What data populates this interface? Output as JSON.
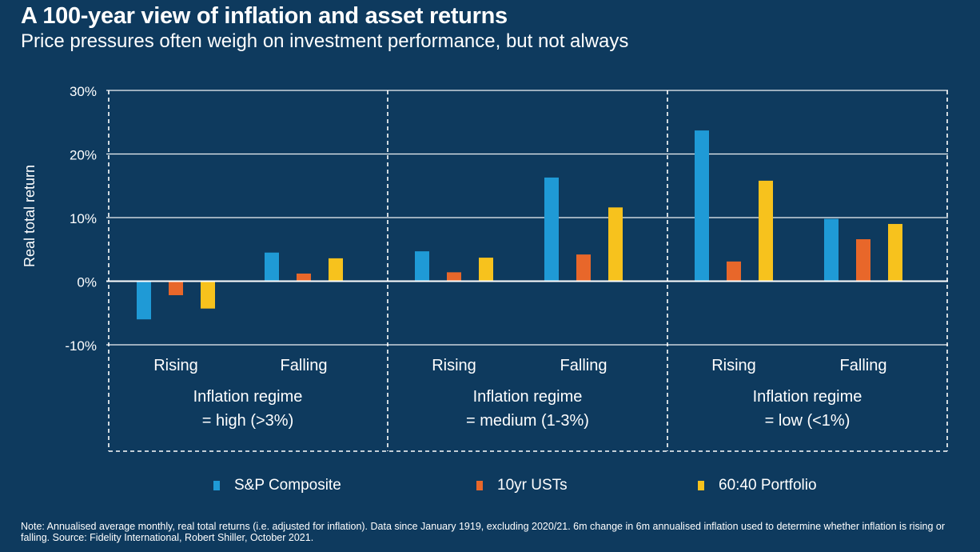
{
  "header": {
    "title": "A 100-year view of inflation and asset returns",
    "subtitle": "Price pressures often weigh on investment performance, but not always"
  },
  "footnote": "Note: Annualised average monthly, real total returns (i.e. adjusted for inflation). Data since January 1919, excluding 2020/21. 6m change in 6m annualised inflation used to determine whether inflation is rising or falling. Source: Fidelity International, Robert Shiller, October 2021.",
  "colors": {
    "background": "#0e3a5e",
    "sp": "#1f9ad6",
    "ust": "#e8672a",
    "portfolio": "#f7c21d",
    "grid": "#ffffff"
  },
  "chart_data": {
    "type": "bar",
    "ylabel": "Real total return",
    "ylim": [
      -10,
      30
    ],
    "yticks": [
      -10,
      0,
      10,
      20,
      30
    ],
    "ytick_labels": [
      "-10%",
      "0%",
      "10%",
      "20%",
      "30%"
    ],
    "grid": true,
    "legend_position": "bottom",
    "groups": [
      {
        "label_line1": "Inflation regime",
        "label_line2": "= high (>3%)"
      },
      {
        "label_line1": "Inflation regime",
        "label_line2": "= medium (1-3%)"
      },
      {
        "label_line1": "Inflation regime",
        "label_line2": "= low (<1%)"
      }
    ],
    "categories": [
      "Rising",
      "Falling",
      "Rising",
      "Falling",
      "Rising",
      "Falling"
    ],
    "series": [
      {
        "name": "S&P Composite",
        "color": "#1f9ad6",
        "values": [
          -6.0,
          4.5,
          4.7,
          16.3,
          23.7,
          9.8
        ]
      },
      {
        "name": "10yr USTs",
        "color": "#e8672a",
        "values": [
          -2.2,
          1.2,
          1.4,
          4.2,
          3.1,
          6.6
        ]
      },
      {
        "name": "60:40 Portfolio",
        "color": "#f7c21d",
        "values": [
          -4.3,
          3.6,
          3.7,
          11.6,
          15.8,
          9.0
        ]
      }
    ]
  }
}
